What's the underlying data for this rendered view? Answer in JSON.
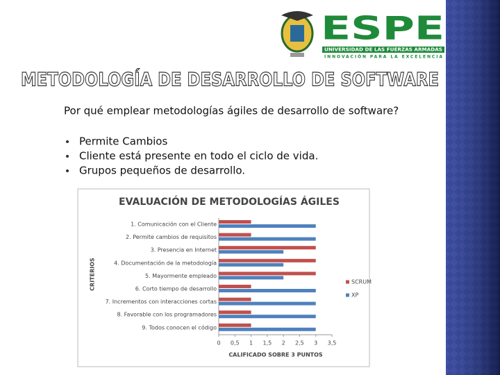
{
  "header": {
    "logo_text": "ESPE",
    "university": "UNIVERSIDAD DE LAS FUERZAS ARMADAS",
    "motto": "INNOVACIÓN PARA LA EXCELENCIA"
  },
  "title": "METODOLOGÍA DE DESARROLLO DE SOFTWARE",
  "question": "Por qué emplear metodologías ágiles de desarrollo de software?",
  "bullets": [
    "Permite Cambios",
    "Cliente está presente en todo el ciclo de vida.",
    "Grupos pequeños de desarrollo."
  ],
  "chart_data": {
    "type": "bar",
    "orientation": "horizontal",
    "title": "EVALUACIÓN DE METODOLOGÍAS ÁGILES",
    "x_label": "CALIFICADO SOBRE 3 PUNTOS",
    "y_label": "CRITERIOS",
    "categories": [
      "1. Comunicación con el Cliente",
      "2. Permite cambios de requisitos",
      "3. Presencia en Internet",
      "4. Documentación de la metodología",
      "5. Mayormente empleado",
      "6. Corto tiempo de desarrollo",
      "7. Incrementos con interacciones cortas",
      "8. Favorable con los programadores",
      "9. Todos conocen el código"
    ],
    "series": [
      {
        "name": "SCRUM",
        "color": "#c0504d",
        "values": [
          1,
          1,
          3,
          3,
          3,
          1,
          1,
          1,
          1
        ]
      },
      {
        "name": "XP",
        "color": "#4f81bd",
        "values": [
          3,
          3,
          2,
          2,
          2,
          3,
          3,
          3,
          3
        ]
      }
    ],
    "xlim": [
      0,
      3.5
    ],
    "xticks": [
      0,
      {
        "value": 0.5,
        "label": "0,5"
      },
      1,
      {
        "value": 1.5,
        "label": "1,5"
      },
      2,
      {
        "value": 2.5,
        "label": "2,5"
      },
      3,
      {
        "value": 3.5,
        "label": "3,5"
      }
    ],
    "legend": "right",
    "grid": false
  }
}
